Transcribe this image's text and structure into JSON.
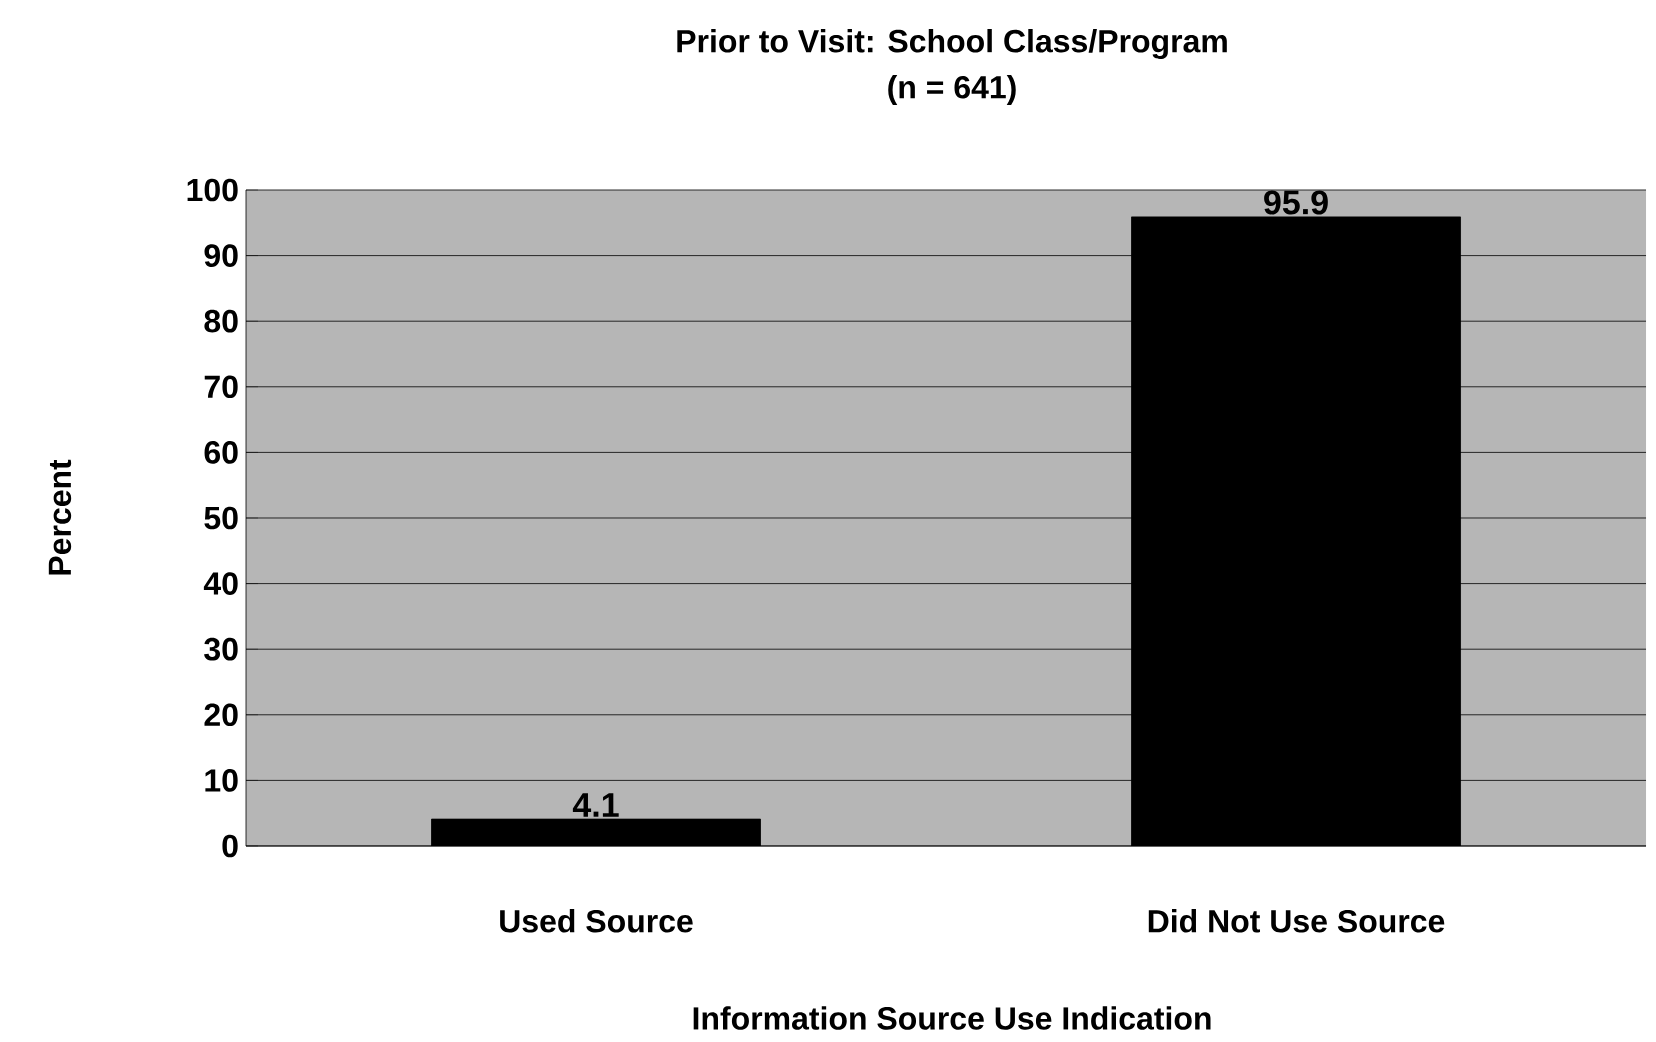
{
  "chart_data": {
    "type": "bar",
    "title": "Prior to Visit: School Class/Program",
    "subtitle": "(n = 641)",
    "xlabel": "Information Source Use Indication",
    "ylabel": "Percent",
    "categories": [
      "Used Source",
      "Did Not Use Source"
    ],
    "values": [
      4.1,
      95.9
    ],
    "color": "#000000",
    "data_labels": true,
    "ylim": [
      0,
      100
    ],
    "yticks": [
      0,
      10,
      20,
      30,
      40,
      50,
      60,
      70,
      80,
      90,
      100
    ],
    "grid": "y"
  }
}
